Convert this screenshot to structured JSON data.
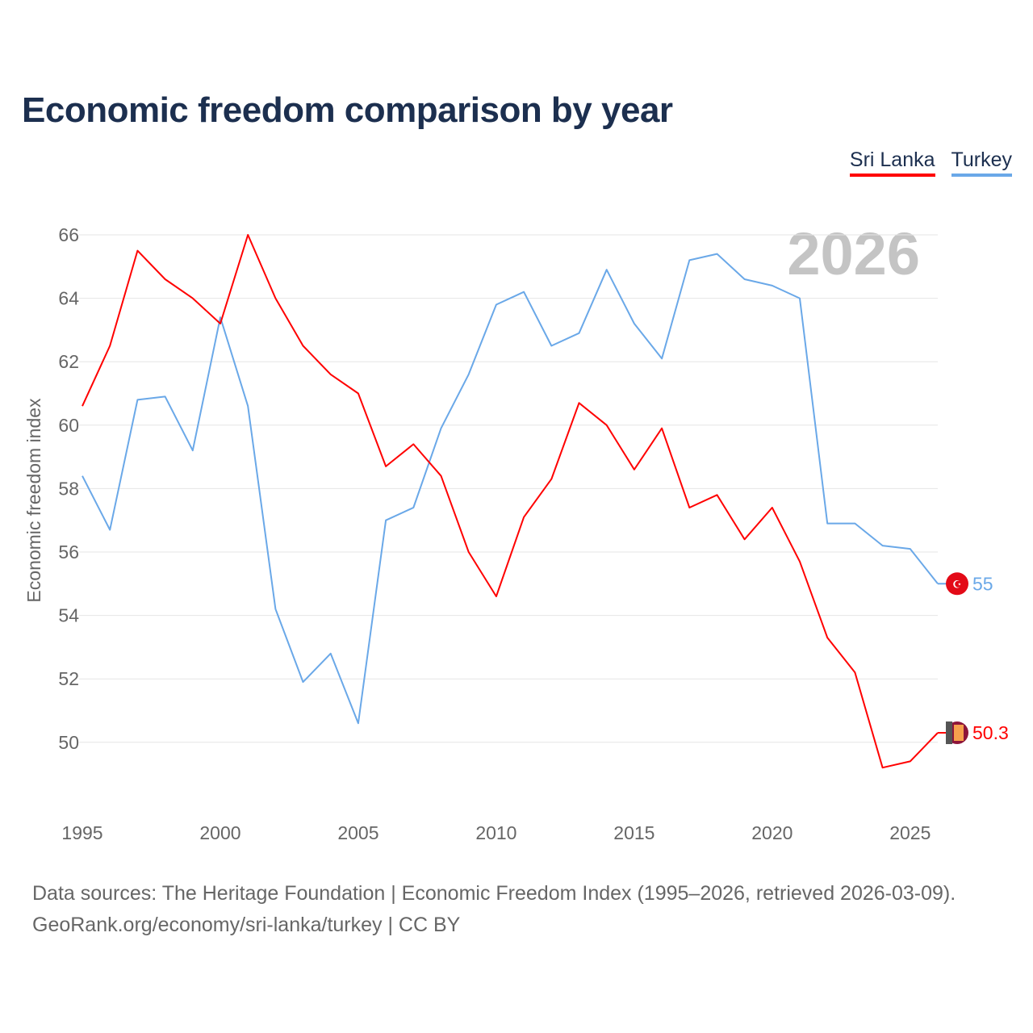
{
  "title": "Economic freedom comparison by year",
  "legend": [
    {
      "label": "Sri Lanka",
      "color": "#ff0000"
    },
    {
      "label": "Turkey",
      "color": "#6aa8e8"
    }
  ],
  "source_line1": "Data sources: The Heritage Foundation | Economic Freedom Index (1995–2026, retrieved 2026-03-09).",
  "source_line2": "GeoRank.org/economy/sri-lanka/turkey | CC BY",
  "chart_data": {
    "type": "line",
    "title": "Economic freedom comparison by year",
    "xlabel": "",
    "ylabel": "Economic freedom index",
    "current_year_label": "2026",
    "x": [
      1995,
      1996,
      1997,
      1998,
      1999,
      2000,
      2001,
      2002,
      2003,
      2004,
      2005,
      2006,
      2007,
      2008,
      2009,
      2010,
      2011,
      2012,
      2013,
      2014,
      2015,
      2016,
      2017,
      2018,
      2019,
      2020,
      2021,
      2022,
      2023,
      2024,
      2025,
      2026
    ],
    "xlim": [
      1995,
      2026
    ],
    "ylim": [
      48,
      66.5
    ],
    "xticks": [
      "1995",
      "2000",
      "2005",
      "2010",
      "2015",
      "2020",
      "2025"
    ],
    "yticks": [
      "50",
      "52",
      "54",
      "56",
      "58",
      "60",
      "62",
      "64",
      "66"
    ],
    "grid": true,
    "legend_position": "top-right",
    "series": [
      {
        "name": "Sri Lanka",
        "color": "#ff0000",
        "end_label": "50.3",
        "values": [
          60.6,
          62.5,
          65.5,
          64.6,
          64.0,
          63.2,
          66.0,
          64.0,
          62.5,
          61.6,
          61.0,
          58.7,
          59.4,
          58.4,
          56.0,
          54.6,
          57.1,
          58.3,
          60.7,
          60.0,
          58.6,
          59.9,
          57.4,
          57.8,
          56.4,
          57.4,
          55.7,
          53.3,
          52.2,
          49.2,
          49.4,
          50.3
        ]
      },
      {
        "name": "Turkey",
        "color": "#6aa8e8",
        "end_label": "55",
        "values": [
          58.4,
          56.7,
          60.8,
          60.9,
          59.2,
          63.4,
          60.6,
          54.2,
          51.9,
          52.8,
          50.6,
          57.0,
          57.4,
          59.9,
          61.6,
          63.8,
          64.2,
          62.5,
          62.9,
          64.9,
          63.2,
          62.1,
          65.2,
          65.4,
          64.6,
          64.4,
          64.0,
          56.9,
          56.9,
          56.2,
          56.1,
          55.0
        ]
      }
    ]
  }
}
